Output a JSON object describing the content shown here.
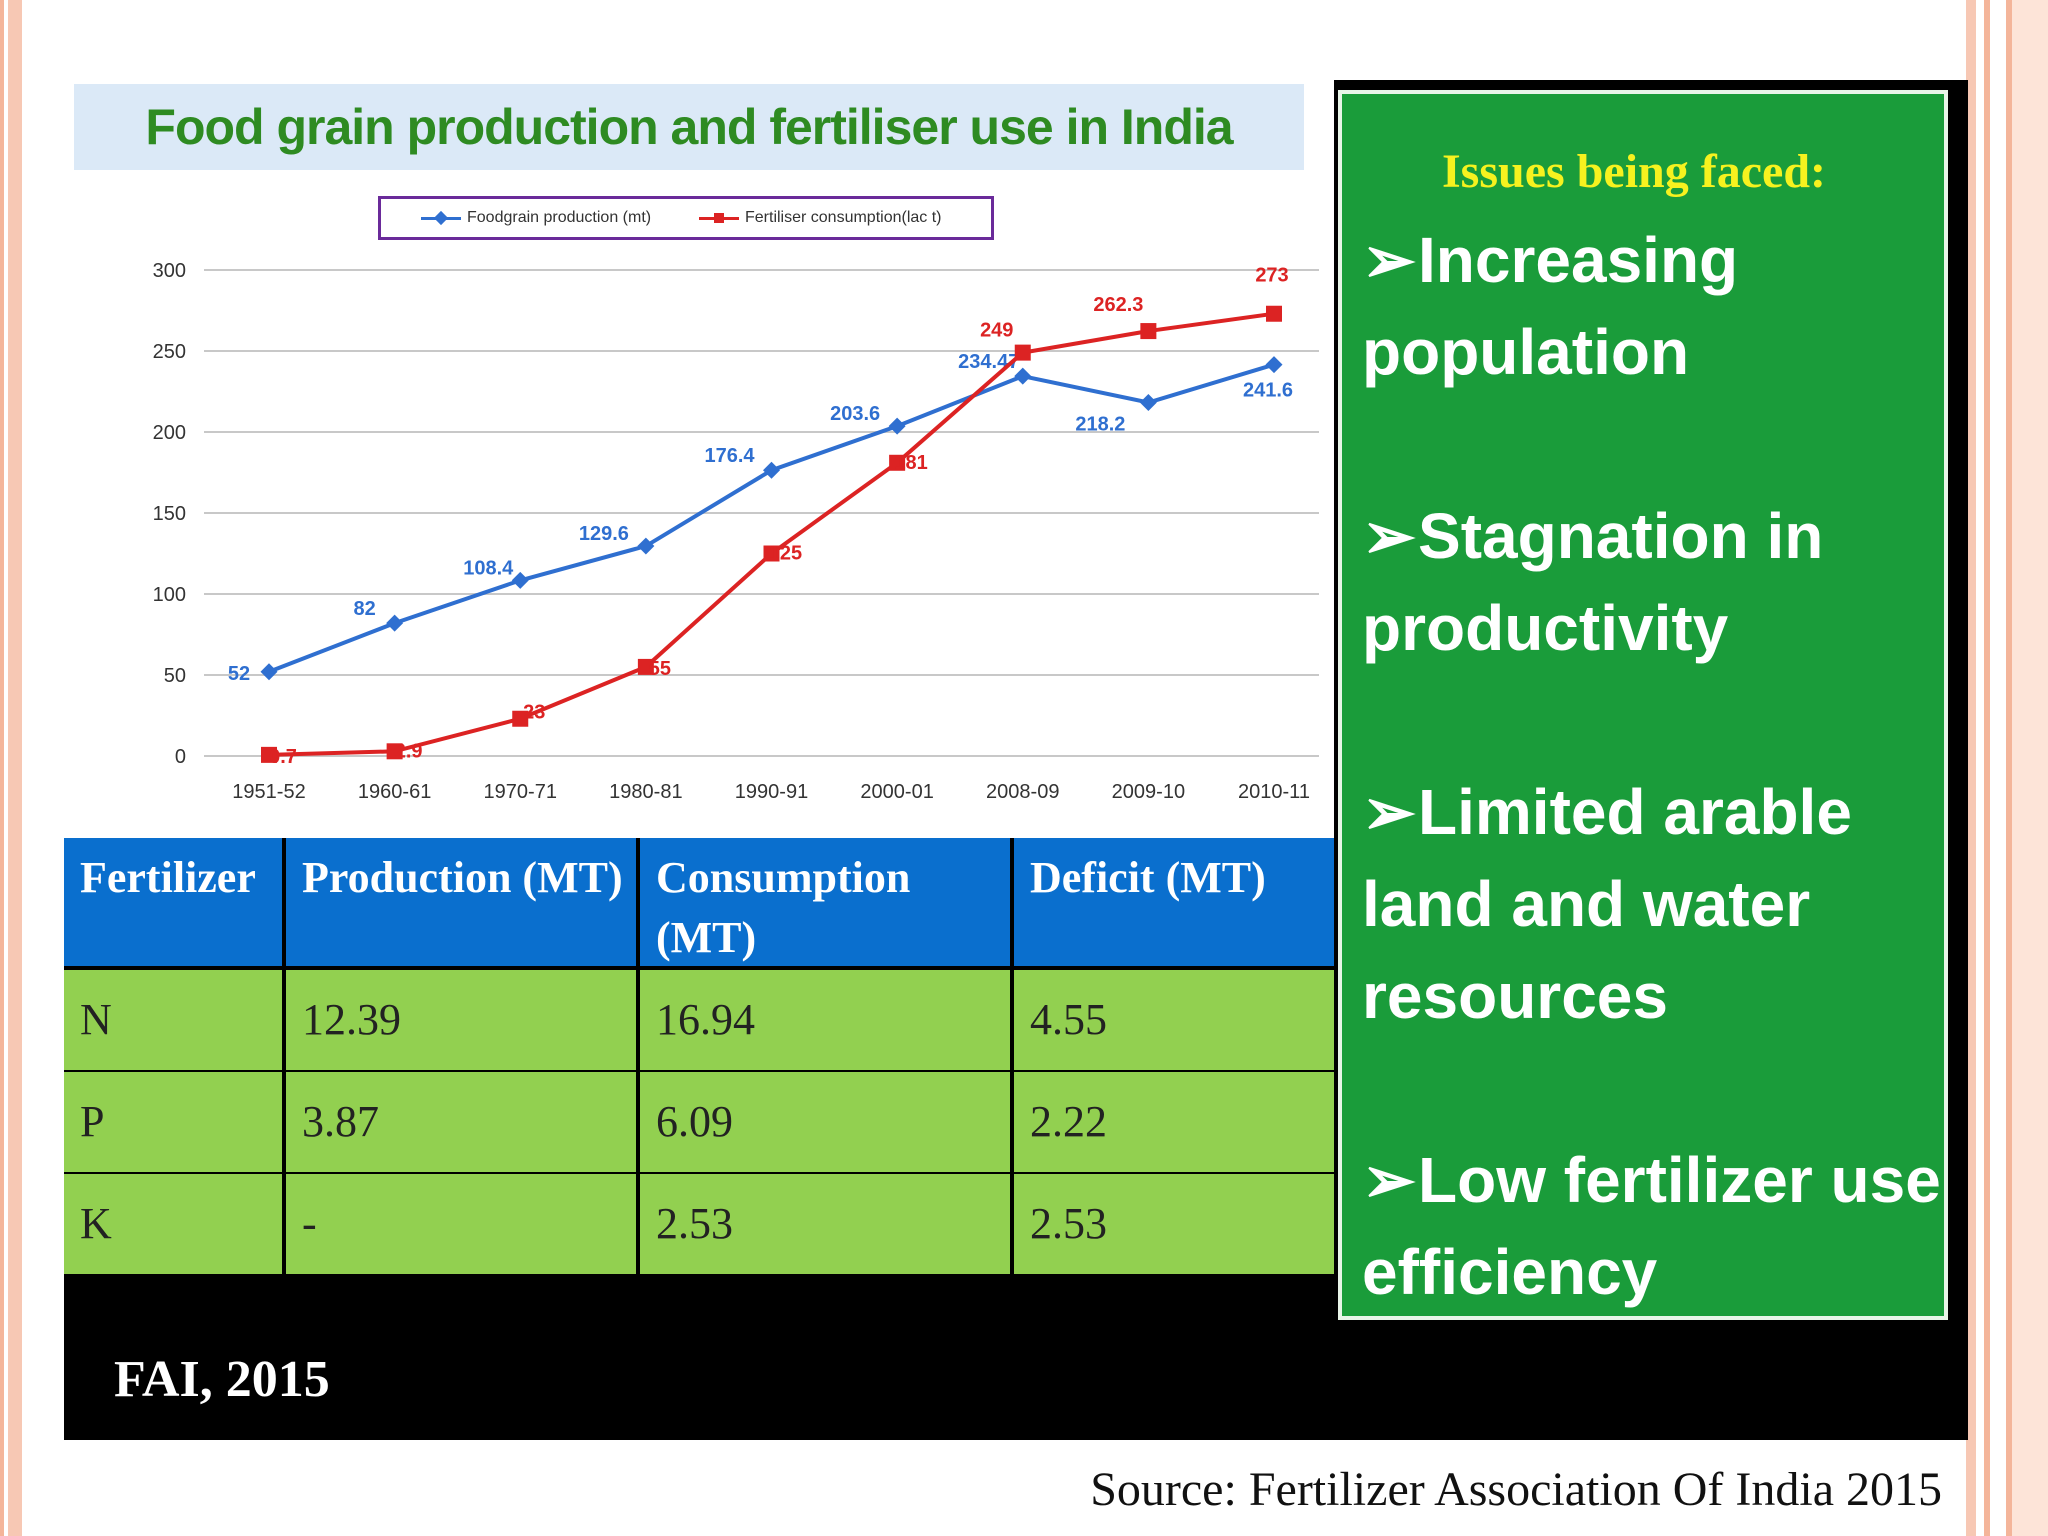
{
  "chart_data": {
    "type": "line",
    "title": "Food grain production and fertiliser use in India",
    "categories": [
      "1951-52",
      "1960-61",
      "1970-71",
      "1980-81",
      "1990-91",
      "2000-01",
      "2008-09",
      "2009-10",
      "2010-11"
    ],
    "series": [
      {
        "name": "Foodgrain production (mt)",
        "color": "#2f6fd0",
        "values": [
          52,
          82,
          108.4,
          129.6,
          176.4,
          203.6,
          234.47,
          218.2,
          241.6
        ],
        "labels": [
          "52",
          "82",
          "108.4",
          "129.6",
          "176.4",
          "203.6",
          "234.47",
          "218.2",
          "241.6"
        ]
      },
      {
        "name": "Fertiliser consumption(lac t)",
        "color": "#dc2323",
        "values": [
          0.7,
          2.9,
          23,
          55,
          125,
          181,
          249,
          262.3,
          273
        ],
        "labels": [
          "0.7",
          "2.9",
          "23",
          "55",
          "125",
          "181",
          "249",
          "262.3",
          "273"
        ]
      }
    ],
    "ylim": [
      0,
      300
    ],
    "yticks": [
      "0",
      "50",
      "100",
      "150",
      "200",
      "250",
      "300"
    ],
    "grid": true,
    "legend": "top"
  },
  "table": {
    "headers": [
      "Fertilizer",
      "Production (MT)",
      "Consumption (MT)",
      "Deficit (MT)"
    ],
    "rows": [
      [
        "N",
        "12.39",
        "16.94",
        "4.55"
      ],
      [
        "P",
        "3.87",
        "6.09",
        "2.22"
      ],
      [
        "K",
        "-",
        "2.53",
        "2.53"
      ]
    ]
  },
  "citation": "FAI, 2015",
  "issues": {
    "title": "Issues being faced:",
    "items": [
      "Increasing population",
      "Stagnation in productivity",
      "Limited arable land and water resources",
      "Low fertilizer use efficiency"
    ]
  },
  "source": "Source: Fertilizer Association Of India 2015",
  "colors": {
    "header_blue": "#0a6fce",
    "row_green": "#92d050",
    "panel_green": "#1a9c3a",
    "title_green": "#2e8b22",
    "issues_yellow": "#f6f21f"
  }
}
